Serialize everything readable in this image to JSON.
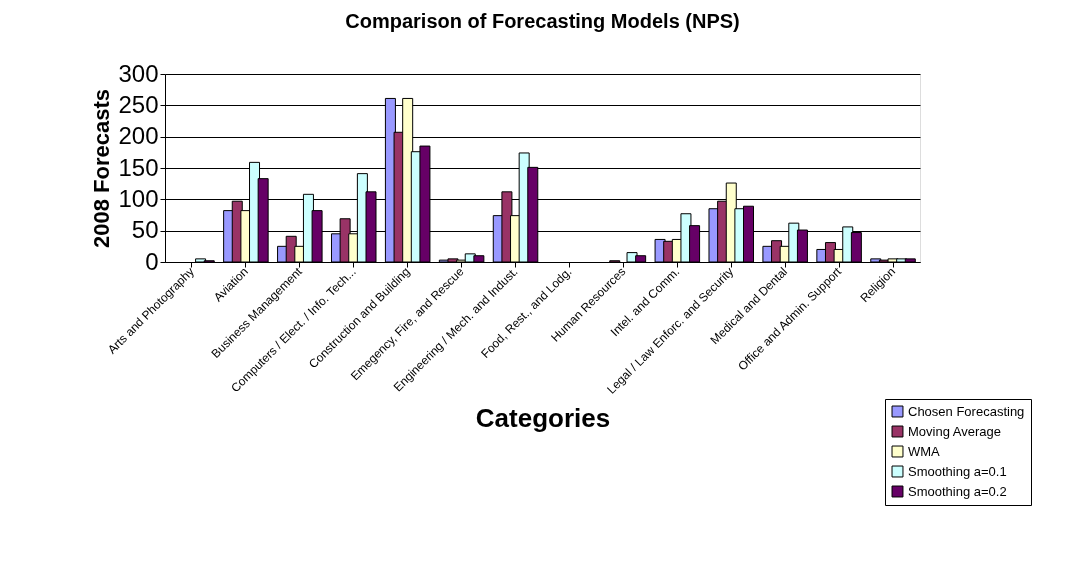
{
  "chart_data": {
    "type": "bar",
    "title": "Comparison of Forecasting Models (NPS)",
    "xlabel": "Categories",
    "ylabel": "2008 Forecasts",
    "categories": [
      "Arts and Photography",
      "Aviation",
      "Business Management",
      "Computers / Elect. / Info. Tech...",
      "Construction and Building",
      "Emegency, Fire, and Rescue",
      "Engineering / Mech. and Indust.",
      "Food, Rest., and Lodg.",
      "Human Resources",
      "Intel. and Comm.",
      "Legal / Law Enforc. and Security",
      "Medical and Dental",
      "Office and Admin. Support",
      "Religion"
    ],
    "series": [
      {
        "name": "Chosen Forecasting",
        "color": "#9999ff",
        "values": [
          0,
          82,
          25,
          45,
          261,
          3,
          74,
          0,
          0,
          36,
          85,
          25,
          20,
          5
        ]
      },
      {
        "name": "Moving Average",
        "color": "#993366",
        "values": [
          0,
          97,
          41,
          69,
          207,
          5,
          112,
          0,
          2,
          33,
          97,
          34,
          31,
          3
        ]
      },
      {
        "name": "WMA",
        "color": "#ffffcc",
        "values": [
          0,
          82,
          25,
          45,
          261,
          3,
          74,
          0,
          0,
          36,
          126,
          25,
          20,
          5
        ]
      },
      {
        "name": "Smoothing a=0.1",
        "color": "#ccffff",
        "values": [
          5,
          159,
          108,
          141,
          176,
          13,
          174,
          0,
          15,
          77,
          85,
          62,
          56,
          5
        ]
      },
      {
        "name": "Smoothing a=0.2",
        "color": "#660066",
        "values": [
          2,
          133,
          82,
          112,
          185,
          10,
          151,
          0,
          10,
          58,
          89,
          51,
          47,
          5
        ]
      }
    ],
    "ylim": [
      0,
      300
    ],
    "yticks": [
      0,
      50,
      100,
      150,
      200,
      250,
      300
    ],
    "grid": "y",
    "legend": "bottom right"
  }
}
